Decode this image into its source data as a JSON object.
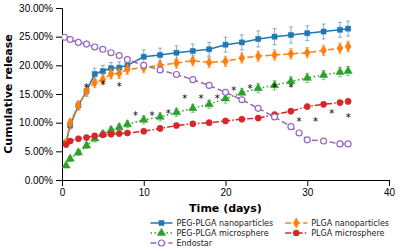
{
  "chart_data": {
    "type": "line",
    "xlabel": "Time (days)",
    "ylabel": "Cumulative release",
    "xlim": [
      0,
      40
    ],
    "ylim": [
      0.0,
      0.3
    ],
    "xticks": [
      0,
      10,
      20,
      30,
      40
    ],
    "yticks": [
      {
        "value": 0.0,
        "label": "0.00%"
      },
      {
        "value": 0.05,
        "label": "5.00%"
      },
      {
        "value": 0.1,
        "label": "10.00%"
      },
      {
        "value": 0.15,
        "label": "15.00%"
      },
      {
        "value": 0.2,
        "label": "20.00%"
      },
      {
        "value": 0.25,
        "label": "25.00%"
      },
      {
        "value": 0.3,
        "label": "30.00%"
      }
    ],
    "grid": false,
    "legend": "lower right",
    "series": [
      {
        "name": "PEG-PLGA nanoparticles",
        "marker": "square",
        "line_style": "solid",
        "x": [
          0.5,
          1,
          2,
          3,
          4,
          5,
          6,
          7,
          8,
          10,
          12,
          14,
          16,
          18,
          20,
          22,
          24,
          26,
          28,
          30,
          32,
          34,
          35
        ],
        "values": [
          0.065,
          0.095,
          0.13,
          0.155,
          0.185,
          0.19,
          0.195,
          0.196,
          0.2,
          0.215,
          0.218,
          0.222,
          0.225,
          0.228,
          0.236,
          0.24,
          0.246,
          0.25,
          0.253,
          0.256,
          0.259,
          0.262,
          0.264
        ],
        "error": [
          0.004,
          0.006,
          0.008,
          0.009,
          0.01,
          0.01,
          0.01,
          0.01,
          0.01,
          0.012,
          0.012,
          0.012,
          0.012,
          0.012,
          0.013,
          0.013,
          0.014,
          0.014,
          0.014,
          0.013,
          0.013,
          0.013,
          0.013
        ]
      },
      {
        "name": "PLGA nanoparticles",
        "marker": "diamond",
        "line_style": "dashed",
        "x": [
          0.5,
          1,
          2,
          3,
          4,
          5,
          6,
          7,
          8,
          10,
          12,
          14,
          16,
          18,
          20,
          22,
          24,
          26,
          28,
          30,
          32,
          34,
          35
        ],
        "values": [
          0.065,
          0.1,
          0.13,
          0.155,
          0.17,
          0.175,
          0.185,
          0.186,
          0.193,
          0.196,
          0.2,
          0.204,
          0.208,
          0.205,
          0.207,
          0.213,
          0.216,
          0.218,
          0.22,
          0.222,
          0.226,
          0.23,
          0.233
        ],
        "error": [
          0.004,
          0.006,
          0.007,
          0.008,
          0.009,
          0.009,
          0.009,
          0.009,
          0.009,
          0.009,
          0.009,
          0.009,
          0.009,
          0.009,
          0.009,
          0.009,
          0.009,
          0.009,
          0.009,
          0.009,
          0.009,
          0.009,
          0.009
        ]
      },
      {
        "name": "PEG-PLGA microsphere",
        "marker": "triangle",
        "line_style": "dotted",
        "x": [
          0.5,
          1,
          2,
          3,
          4,
          5,
          6,
          7,
          8,
          10,
          12,
          14,
          16,
          18,
          20,
          22,
          24,
          26,
          28,
          30,
          32,
          34,
          35
        ],
        "values": [
          0.025,
          0.037,
          0.048,
          0.06,
          0.072,
          0.08,
          0.087,
          0.092,
          0.097,
          0.105,
          0.11,
          0.118,
          0.125,
          0.132,
          0.142,
          0.152,
          0.16,
          0.165,
          0.172,
          0.178,
          0.183,
          0.188,
          0.19
        ],
        "error": [
          0.003,
          0.004,
          0.005,
          0.005,
          0.006,
          0.006,
          0.006,
          0.006,
          0.006,
          0.007,
          0.007,
          0.007,
          0.007,
          0.007,
          0.008,
          0.008,
          0.008,
          0.008,
          0.008,
          0.008,
          0.008,
          0.008,
          0.008
        ]
      },
      {
        "name": "PLGA microsphere",
        "marker": "circle",
        "line_style": "dashdot",
        "x": [
          0.5,
          1,
          2,
          3,
          4,
          5,
          6,
          7,
          8,
          10,
          12,
          14,
          16,
          18,
          20,
          22,
          24,
          26,
          28,
          30,
          32,
          34,
          35
        ],
        "values": [
          0.062,
          0.068,
          0.072,
          0.074,
          0.077,
          0.079,
          0.08,
          0.081,
          0.082,
          0.085,
          0.09,
          0.095,
          0.098,
          0.1,
          0.103,
          0.106,
          0.108,
          0.114,
          0.12,
          0.128,
          0.132,
          0.135,
          0.137
        ],
        "error": [
          0.004,
          0.004,
          0.004,
          0.004,
          0.004,
          0.004,
          0.004,
          0.004,
          0.004,
          0.004,
          0.004,
          0.004,
          0.004,
          0.004,
          0.004,
          0.004,
          0.004,
          0.004,
          0.004,
          0.004,
          0.004,
          0.004,
          0.004
        ]
      },
      {
        "name": "Endostar",
        "marker": "open-circle",
        "line_style": "dashed",
        "x": [
          0.3,
          1,
          2,
          3,
          4,
          5,
          6,
          7,
          8,
          10,
          12,
          14,
          16,
          18,
          20,
          22,
          24,
          26,
          28,
          29,
          30,
          32,
          34,
          35
        ],
        "values": [
          0.249,
          0.245,
          0.24,
          0.237,
          0.232,
          0.228,
          0.222,
          0.217,
          0.21,
          0.2,
          0.192,
          0.184,
          0.175,
          0.165,
          0.153,
          0.14,
          0.125,
          0.11,
          0.093,
          0.082,
          0.07,
          0.068,
          0.063,
          0.063
        ]
      }
    ],
    "annotations": [
      {
        "text": "*",
        "x": 3,
        "y": 0.168
      },
      {
        "text": "*",
        "x": 5,
        "y": 0.173
      },
      {
        "text": "*",
        "x": 7,
        "y": 0.17
      },
      {
        "text": "*",
        "x": 9,
        "y": 0.118
      },
      {
        "text": "*",
        "x": 11,
        "y": 0.118
      },
      {
        "text": "*",
        "x": 13,
        "y": 0.122
      },
      {
        "text": "*",
        "x": 15,
        "y": 0.148
      },
      {
        "text": "*",
        "x": 17,
        "y": 0.148
      },
      {
        "text": "*",
        "x": 19,
        "y": 0.148
      },
      {
        "text": "*",
        "x": 21,
        "y": 0.162
      },
      {
        "text": "*",
        "x": 23,
        "y": 0.165
      },
      {
        "text": "*",
        "x": 26,
        "y": 0.168
      },
      {
        "text": "*",
        "x": 28,
        "y": 0.168
      },
      {
        "text": "*",
        "x": 29,
        "y": 0.108
      },
      {
        "text": "*",
        "x": 31,
        "y": 0.108
      },
      {
        "text": "*",
        "x": 33,
        "y": 0.122
      },
      {
        "text": "*",
        "x": 35,
        "y": 0.115
      }
    ]
  }
}
